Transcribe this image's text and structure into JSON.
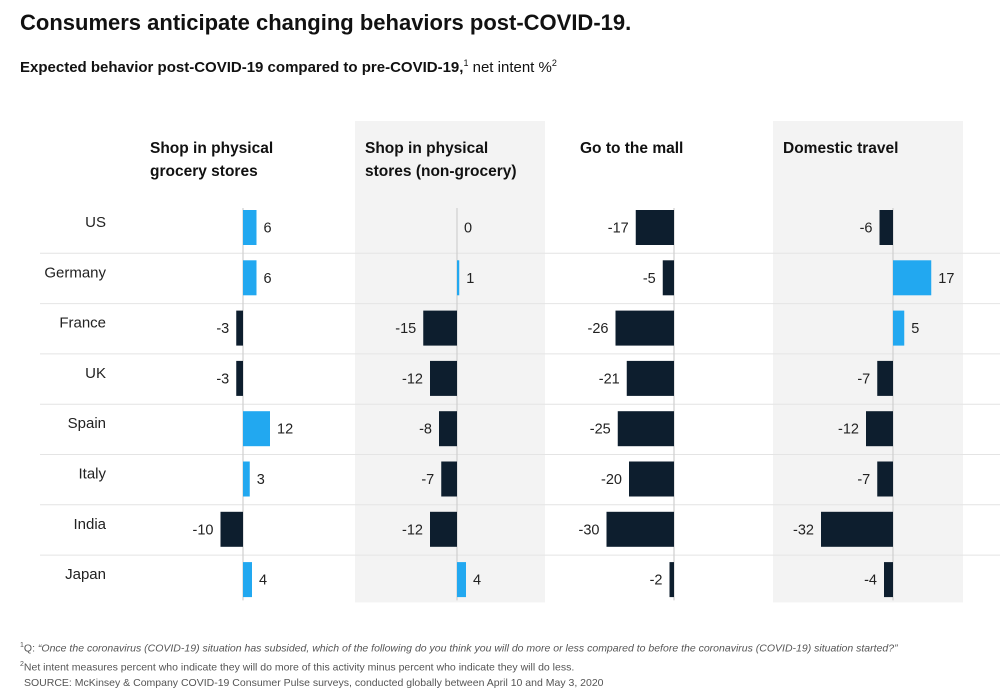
{
  "title": "Consumers anticipate changing behaviors post-COVID-19.",
  "subtitle": {
    "bold": "Expected behavior post-COVID-19 compared to pre-COVID-19,",
    "sup1": "1",
    "rest": " net intent %",
    "sup2": "2"
  },
  "colors": {
    "positive": "#22a8f0",
    "negative": "#0d1e2e",
    "panel_shade": "#f3f3f3",
    "separator": "#e4e4e4"
  },
  "chart_data": {
    "type": "bar",
    "orientation": "horizontal",
    "categories": [
      "US",
      "Germany",
      "France",
      "UK",
      "Spain",
      "Italy",
      "India",
      "Japan"
    ],
    "series": [
      {
        "name": "Shop in physical grocery stores",
        "values": [
          6,
          6,
          -3,
          -3,
          12,
          3,
          -10,
          4
        ]
      },
      {
        "name": "Shop in physical stores (non-grocery)",
        "values": [
          0,
          1,
          -15,
          -12,
          -8,
          -7,
          -12,
          4
        ]
      },
      {
        "name": "Go to the mall",
        "values": [
          -17,
          -5,
          -26,
          -21,
          -25,
          -20,
          -30,
          -2
        ]
      },
      {
        "name": "Domestic travel",
        "values": [
          -6,
          17,
          5,
          -7,
          -12,
          -7,
          -32,
          -4
        ]
      }
    ],
    "panel_titles": [
      [
        "Shop in physical",
        "grocery stores"
      ],
      [
        "Shop in physical",
        "stores (non-grocery)"
      ],
      [
        "Go to the mall"
      ],
      [
        "Domestic travel"
      ]
    ],
    "title": "Expected behavior post-COVID-19 compared to pre-COVID-19, net intent %",
    "xlabel": "net intent %",
    "ylabel": ""
  },
  "footnotes": {
    "f1_sup": "1",
    "f1_prefix": "Q: ",
    "f1_question": "“Once the coronavirus (COVID-19) situation has subsided, which of the following do you think you will do more or less compared to before the coronavirus (COVID-19) situation started?”",
    "f2_sup": "2",
    "f2_text": "Net intent measures percent who indicate they will do more of this activity minus percent who indicate they will do less.",
    "source": "SOURCE: McKinsey & Company COVID-19 Consumer Pulse surveys, conducted globally between April 10 and May 3, 2020"
  }
}
